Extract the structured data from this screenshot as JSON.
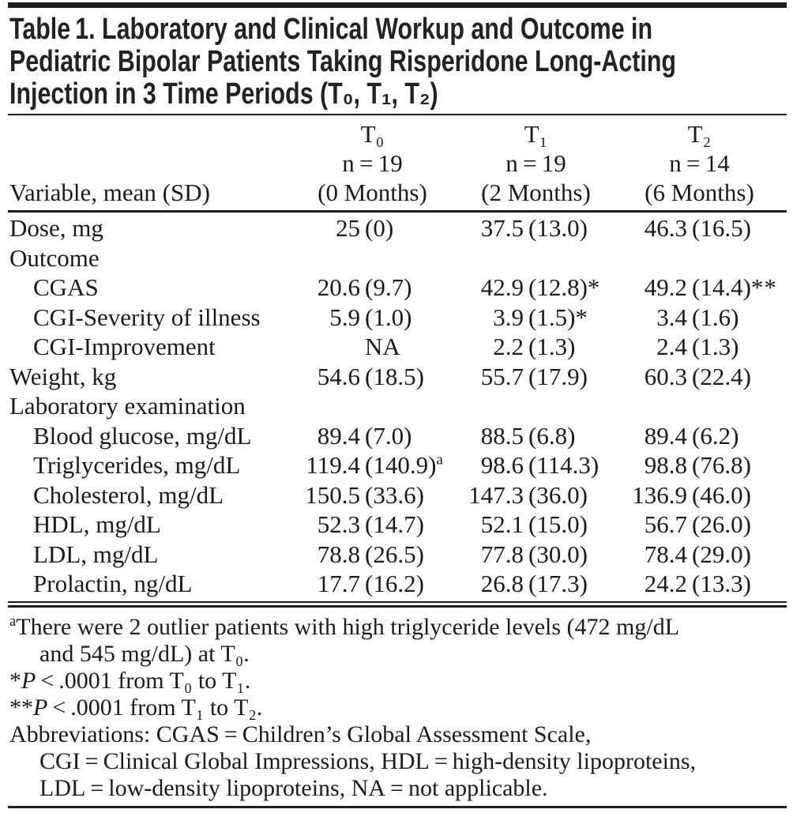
{
  "table_title": {
    "line1": "Table 1. Laboratory and Clinical Workup and Outcome in",
    "line2": "Pediatric Bipolar Patients Taking Risperidone Long-Acting",
    "line3": "Injection in 3 Time Periods (T₀, T₁, T₂)"
  },
  "header": {
    "variable_label": "Variable, mean (SD)",
    "columns": [
      {
        "period": "T₀",
        "n": "n = 19",
        "months": "(0 Months)"
      },
      {
        "period": "T₁",
        "n": "n = 19",
        "months": "(2 Months)"
      },
      {
        "period": "T₂",
        "n": "n = 14",
        "months": "(6 Months)"
      }
    ]
  },
  "table": {
    "rows": [
      {
        "label": "Dose, mg",
        "indent": false,
        "cells": [
          {
            "m": "25",
            "s": "(0)"
          },
          {
            "m": "37.5",
            "s": "(13.0)"
          },
          {
            "m": "46.3",
            "s": "(16.5)"
          }
        ]
      },
      {
        "label": "Outcome",
        "indent": false
      },
      {
        "label": "CGAS",
        "indent": true,
        "cells": [
          {
            "m": "20.6",
            "s": "(9.7)"
          },
          {
            "m": "42.9",
            "s": "(12.8)",
            "star": "*"
          },
          {
            "m": "49.2",
            "s": "(14.4)",
            "star": "**"
          }
        ]
      },
      {
        "label": "CGI-Severity of illness",
        "indent": true,
        "cells": [
          {
            "m": "5.9",
            "s": "(1.0)"
          },
          {
            "m": "3.9",
            "s": "(1.5)",
            "star": "*"
          },
          {
            "m": "3.4",
            "s": "(1.6)"
          }
        ]
      },
      {
        "label": "CGI-Improvement",
        "indent": true,
        "cells": [
          {
            "m": "",
            "s": "NA"
          },
          {
            "m": "2.2",
            "s": "(1.3)"
          },
          {
            "m": "2.4",
            "s": "(1.3)"
          }
        ]
      },
      {
        "label": "Weight, kg",
        "indent": false,
        "cells": [
          {
            "m": "54.6",
            "s": "(18.5)"
          },
          {
            "m": "55.7",
            "s": "(17.9)"
          },
          {
            "m": "60.3",
            "s": "(22.4)"
          }
        ]
      },
      {
        "label": "Laboratory examination",
        "indent": false
      },
      {
        "label": "Blood glucose, mg/dL",
        "indent": true,
        "cells": [
          {
            "m": "89.4",
            "s": "(7.0)"
          },
          {
            "m": "88.5",
            "s": "(6.8)"
          },
          {
            "m": "89.4",
            "s": "(6.2)"
          }
        ]
      },
      {
        "label": "Triglycerides, mg/dL",
        "indent": true,
        "cells": [
          {
            "m": "119.4",
            "s": "(140.9)",
            "sup": "a"
          },
          {
            "m": "98.6",
            "s": "(114.3)"
          },
          {
            "m": "98.8",
            "s": "(76.8)"
          }
        ]
      },
      {
        "label": "Cholesterol, mg/dL",
        "indent": true,
        "cells": [
          {
            "m": "150.5",
            "s": "(33.6)"
          },
          {
            "m": "147.3",
            "s": "(36.0)"
          },
          {
            "m": "136.9",
            "s": "(46.0)"
          }
        ]
      },
      {
        "label": "HDL, mg/dL",
        "indent": true,
        "cells": [
          {
            "m": "52.3",
            "s": "(14.7)"
          },
          {
            "m": "52.1",
            "s": "(15.0)"
          },
          {
            "m": "56.7",
            "s": "(26.0)"
          }
        ]
      },
      {
        "label": "LDL, mg/dL",
        "indent": true,
        "cells": [
          {
            "m": "78.8",
            "s": "(26.5)"
          },
          {
            "m": "77.8",
            "s": "(30.0)"
          },
          {
            "m": "78.4",
            "s": "(29.0)"
          }
        ]
      },
      {
        "label": "Prolactin, ng/dL",
        "indent": true,
        "cells": [
          {
            "m": "17.7",
            "s": "(16.2)"
          },
          {
            "m": "26.8",
            "s": "(17.3)"
          },
          {
            "m": "24.2",
            "s": "(13.3)"
          }
        ]
      }
    ]
  },
  "footnotes": {
    "lines": [
      {
        "indent": false,
        "parts": [
          {
            "sup": "a"
          },
          {
            "t": "There were 2 outlier patients with high triglyceride levels (472 mg/dL"
          }
        ]
      },
      {
        "indent": true,
        "parts": [
          {
            "t": "and 545 mg/dL) at T₀."
          }
        ]
      },
      {
        "indent": false,
        "parts": [
          {
            "t": "*"
          },
          {
            "i": "P"
          },
          {
            "t": " < .0001 from T₀ to T₁."
          }
        ]
      },
      {
        "indent": false,
        "parts": [
          {
            "t": "**"
          },
          {
            "i": "P"
          },
          {
            "t": " < .0001 from T₁ to T₂."
          }
        ]
      },
      {
        "indent": false,
        "parts": [
          {
            "t": "Abbreviations: CGAS = Children’s Global Assessment Scale,"
          }
        ]
      },
      {
        "indent": true,
        "parts": [
          {
            "t": "CGI = Clinical Global Impressions, HDL = high-density lipoproteins,"
          }
        ]
      },
      {
        "indent": true,
        "parts": [
          {
            "t": "LDL = low-density lipoproteins, NA = not applicable."
          }
        ]
      }
    ]
  },
  "colors": {
    "text": "#1b1b1b",
    "rule": "#1d1d1d",
    "background": "#ffffff"
  }
}
